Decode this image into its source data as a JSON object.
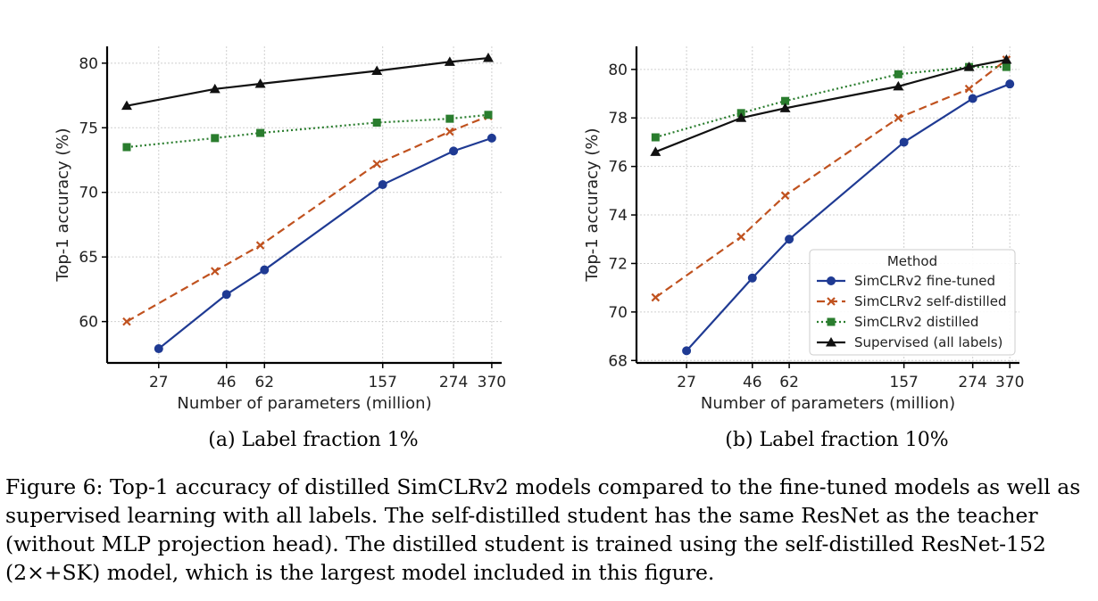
{
  "caption": "Figure 6: Top-1 accuracy of distilled SimCLRv2 models compared to the fine-tuned models as well as supervised learning with all labels. The self-distilled student has the same ResNet as the teacher (without MLP projection head). The distilled student is trained using the self-distilled ResNet-152 (2×+SK) model, which is the largest model included in this figure.",
  "colors": {
    "fine_tuned": "#1f3a93",
    "self_distilled": "#c0521f",
    "distilled": "#2a7d2e",
    "supervised": "#111111"
  },
  "chart_data": [
    {
      "type": "line",
      "subcaption": "(a) Label fraction 1%",
      "xlabel": "Number of parameters (million)",
      "ylabel": "Top-1 accuracy (%)",
      "xlim": [
        18,
        400
      ],
      "ylim": [
        56.8,
        81.3
      ],
      "xticks": [
        27,
        46,
        62,
        157,
        274,
        370
      ],
      "yticks": [
        60,
        65,
        70,
        75,
        80
      ],
      "grid": true,
      "legend": null,
      "series": [
        {
          "name": "SimCLRv2 fine-tuned",
          "marker": "circle",
          "dash": "solid",
          "x": [
            27,
            46,
            62,
            157,
            274,
            370
          ],
          "y": [
            57.9,
            62.1,
            64.0,
            70.6,
            73.2,
            74.2
          ]
        },
        {
          "name": "SimCLRv2 self-distilled",
          "marker": "x",
          "dash": "dashed",
          "x": [
            21,
            42,
            60,
            150,
            266,
            360
          ],
          "y": [
            60.0,
            63.9,
            65.9,
            72.2,
            74.7,
            75.9
          ]
        },
        {
          "name": "SimCLRv2 distilled",
          "marker": "square",
          "dash": "dotted",
          "x": [
            21,
            42,
            60,
            150,
            266,
            360
          ],
          "y": [
            73.5,
            74.2,
            74.6,
            75.4,
            75.7,
            76.0
          ]
        },
        {
          "name": "Supervised (all labels)",
          "marker": "triangle",
          "dash": "solid",
          "x": [
            21,
            42,
            60,
            150,
            266,
            360
          ],
          "y": [
            76.7,
            78.0,
            78.4,
            79.4,
            80.1,
            80.4
          ]
        }
      ]
    },
    {
      "type": "line",
      "subcaption": "(b) Label fraction 10%",
      "xlabel": "Number of parameters (million)",
      "ylabel": "Top-1 accuracy (%)",
      "xlim": [
        18,
        400
      ],
      "ylim": [
        67.9,
        80.95
      ],
      "xticks": [
        27,
        46,
        62,
        157,
        274,
        370
      ],
      "yticks": [
        68,
        70,
        72,
        74,
        76,
        78,
        80
      ],
      "grid": true,
      "legend": "lower-right",
      "legend_title": "Method",
      "series": [
        {
          "name": "SimCLRv2 fine-tuned",
          "marker": "circle",
          "dash": "solid",
          "x": [
            27,
            46,
            62,
            157,
            274,
            370
          ],
          "y": [
            68.4,
            71.4,
            73.0,
            77.0,
            78.8,
            79.4
          ]
        },
        {
          "name": "SimCLRv2 self-distilled",
          "marker": "x",
          "dash": "dashed",
          "x": [
            21,
            42,
            60,
            150,
            266,
            360
          ],
          "y": [
            70.6,
            73.1,
            74.8,
            78.0,
            79.2,
            80.4
          ]
        },
        {
          "name": "SimCLRv2 distilled",
          "marker": "square",
          "dash": "dotted",
          "x": [
            21,
            42,
            60,
            150,
            266,
            360
          ],
          "y": [
            77.2,
            78.2,
            78.7,
            79.8,
            80.1,
            80.1
          ]
        },
        {
          "name": "Supervised (all labels)",
          "marker": "triangle",
          "dash": "solid",
          "x": [
            21,
            42,
            60,
            150,
            266,
            360
          ],
          "y": [
            76.6,
            78.0,
            78.4,
            79.3,
            80.1,
            80.4
          ]
        }
      ]
    }
  ]
}
